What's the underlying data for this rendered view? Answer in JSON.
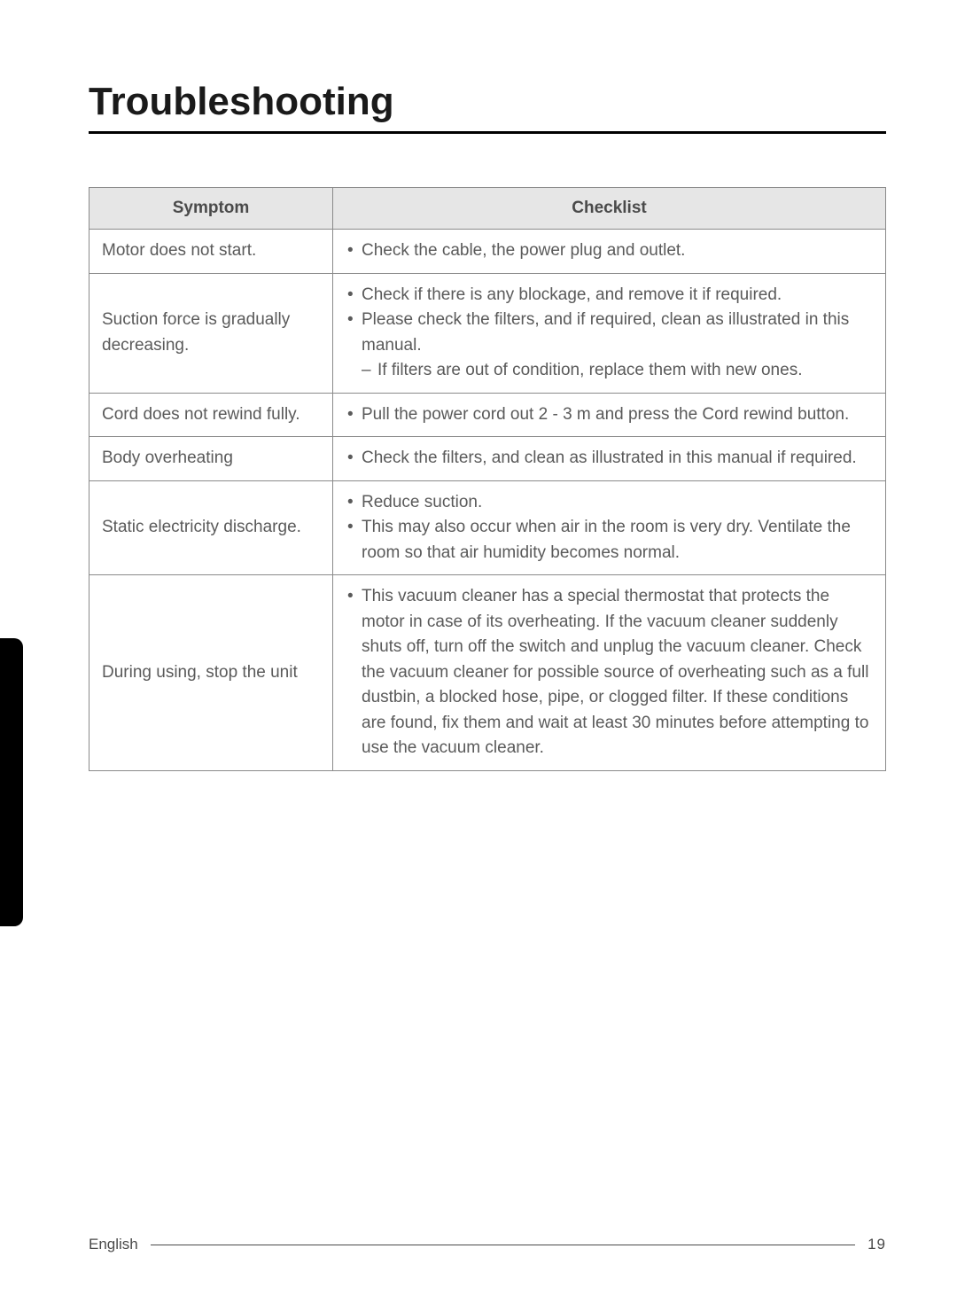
{
  "title": "Troubleshooting",
  "table": {
    "headers": {
      "symptom": "Symptom",
      "checklist": "Checklist"
    },
    "rows": [
      {
        "symptom": "Motor does not start.",
        "items": [
          {
            "text": "Check the cable, the power plug and outlet."
          }
        ]
      },
      {
        "symptom": "Suction force is gradually decreasing.",
        "items": [
          {
            "text": "Check if there is any blockage, and remove it if required."
          },
          {
            "text": "Please check the filters, and if required, clean as illustrated in this manual.",
            "sub": [
              {
                "dash": true,
                "text": "If filters are out of condition, replace them with new ones."
              }
            ]
          }
        ]
      },
      {
        "symptom": "Cord does not rewind fully.",
        "items": [
          {
            "text": "Pull the power cord out 2 - 3 m and press the Cord rewind button."
          }
        ]
      },
      {
        "symptom": "Body overheating",
        "items": [
          {
            "text": "Check the filters, and clean as illustrated in this manual if required."
          }
        ]
      },
      {
        "symptom": "Static electricity discharge.",
        "items": [
          {
            "text": "Reduce suction."
          },
          {
            "text": "This may also occur when air in the room is very dry. Ventilate the room so that air humidity becomes normal."
          }
        ]
      },
      {
        "symptom": "During using, stop the unit",
        "items": [
          {
            "text": "This vacuum cleaner has a special thermostat that protects the motor in case of its overheating. If the vacuum cleaner suddenly shuts off, turn off the switch and unplug the vacuum cleaner. Check the vacuum cleaner for possible source of overheating such as a full dustbin, a blocked hose, pipe, or clogged filter. If these conditions are found, fix them and wait at least 30 minutes before attempting to use the vacuum cleaner."
          }
        ]
      }
    ]
  },
  "footer": {
    "lang": "English",
    "page": "19"
  },
  "colors": {
    "header_bg": "#e6e6e6",
    "border": "#8a8a8a",
    "text": "#5a5a5a",
    "title": "#1a1a1a",
    "tab": "#000000"
  }
}
